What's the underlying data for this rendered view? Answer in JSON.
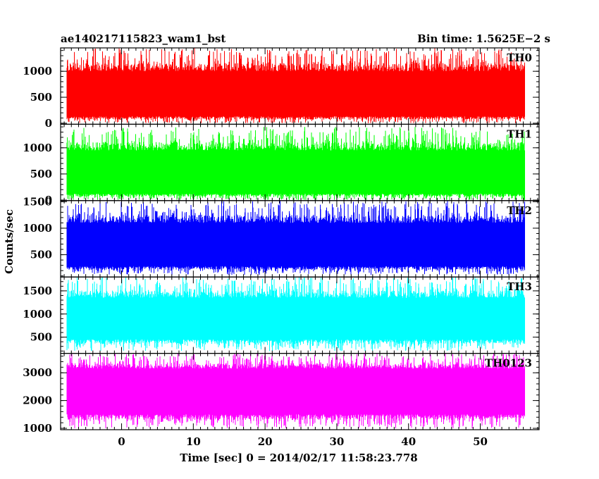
{
  "header": {
    "left_title": "ae140217115823_wam1_bst",
    "right_title": "Bin time: 1.5625E−2 s"
  },
  "chart_data": {
    "type": "line",
    "xlabel": "Time [sec] 0 = 2014/02/17 11:58:23.778",
    "ylabel": "Counts/sec",
    "xlim": [
      -8.5,
      58.2
    ],
    "x_ticks": [
      0,
      10,
      20,
      30,
      40,
      50
    ],
    "x_tick_labels": [
      "0",
      "10",
      "20",
      "30",
      "40",
      "50"
    ],
    "data_x_range": [
      -7.6,
      56.1
    ],
    "bin_time": 0.015625,
    "panels": [
      {
        "name": "TH0",
        "color": "#ff0000",
        "ylim": [
          -20,
          1450
        ],
        "y_ticks": [
          0,
          500,
          1000
        ],
        "y_tick_labels": [
          "0",
          "500",
          "1000"
        ],
        "typical_low": 130,
        "typical_high": 1000,
        "min": 0,
        "max": 1450
      },
      {
        "name": "TH1",
        "color": "#00ff00",
        "ylim": [
          -10,
          1450
        ],
        "y_ticks": [
          0,
          500,
          1000
        ],
        "y_tick_labels": [
          "0",
          "500",
          "1000"
        ],
        "typical_low": 120,
        "typical_high": 950,
        "min": 0,
        "max": 1400
      },
      {
        "name": "TH2",
        "color": "#0000ff",
        "ylim": [
          80,
          1520
        ],
        "y_ticks": [
          500,
          1000,
          1500
        ],
        "y_tick_labels": [
          "500",
          "1000",
          "1500"
        ],
        "typical_low": 280,
        "typical_high": 1100,
        "min": 120,
        "max": 1520
      },
      {
        "name": "TH3",
        "color": "#00ffff",
        "ylim": [
          150,
          1800
        ],
        "y_ticks": [
          500,
          1000,
          1500
        ],
        "y_tick_labels": [
          "500",
          "1000",
          "1500"
        ],
        "typical_low": 450,
        "typical_high": 1350,
        "min": 200,
        "max": 1800
      },
      {
        "name": "TH0123",
        "color": "#ff00ff",
        "ylim": [
          950,
          3700
        ],
        "y_ticks": [
          1000,
          2000,
          3000
        ],
        "y_tick_labels": [
          "1000",
          "2000",
          "3000"
        ],
        "typical_low": 1500,
        "typical_high": 3150,
        "min": 1000,
        "max": 3700
      }
    ]
  }
}
